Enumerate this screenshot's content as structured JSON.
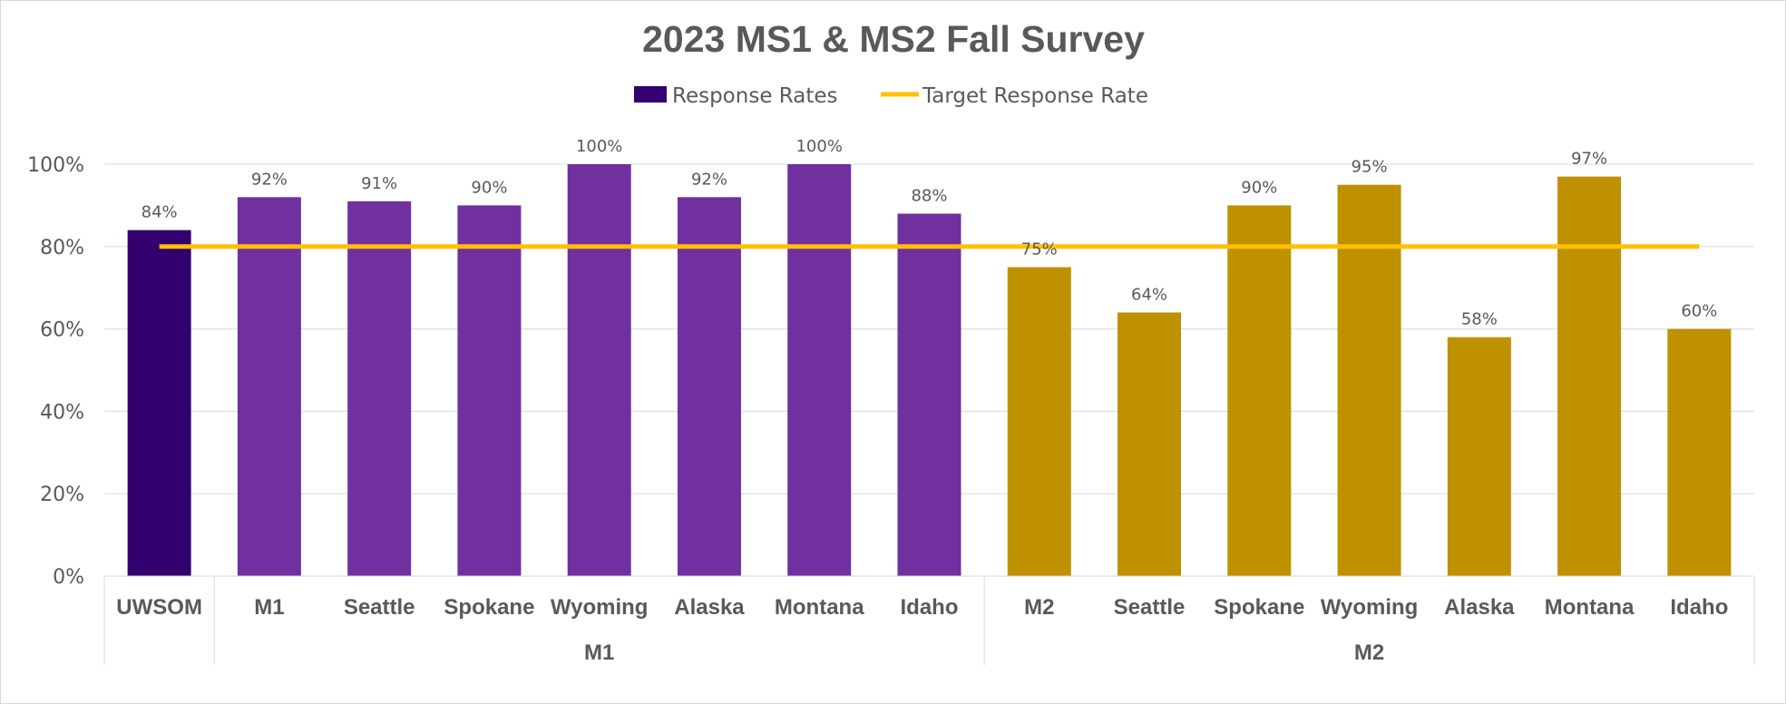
{
  "chart_data": {
    "type": "bar",
    "title": "2023 MS1 & MS2 Fall Survey",
    "xlabel": "",
    "ylabel": "",
    "ylim": [
      0,
      100
    ],
    "yticks": [
      "0%",
      "20%",
      "40%",
      "60%",
      "80%",
      "100%"
    ],
    "ytick_values": [
      0,
      20,
      40,
      60,
      80,
      100
    ],
    "grid": true,
    "legend": {
      "placement": "top",
      "entries": [
        {
          "label": "Response Rates",
          "marker": "bar",
          "color": "#33006F"
        },
        {
          "label": "Target Response Rate",
          "marker": "line",
          "color": "#FFC000"
        }
      ]
    },
    "categories": [
      "UWSOM",
      "M1",
      "Seattle",
      "Spokane",
      "Wyoming",
      "Alaska",
      "Montana",
      "Idaho",
      "M2",
      "Seattle",
      "Spokane",
      "Wyoming",
      "Alaska",
      "Montana",
      "Idaho"
    ],
    "groups": [
      {
        "label": "",
        "start": 0,
        "count": 1
      },
      {
        "label": "M1",
        "start": 1,
        "count": 7
      },
      {
        "label": "M2",
        "start": 8,
        "count": 7
      }
    ],
    "series": [
      {
        "name": "Response Rates",
        "values": [
          84,
          92,
          91,
          90,
          100,
          92,
          100,
          88,
          75,
          64,
          90,
          95,
          58,
          97,
          60
        ],
        "data_labels": [
          "84%",
          "92%",
          "91%",
          "90%",
          "100%",
          "92%",
          "100%",
          "88%",
          "75%",
          "64%",
          "90%",
          "95%",
          "58%",
          "97%",
          "60%"
        ],
        "colors": [
          "#33006F",
          "#7030A0",
          "#7030A0",
          "#7030A0",
          "#7030A0",
          "#7030A0",
          "#7030A0",
          "#7030A0",
          "#BF9000",
          "#BF9000",
          "#BF9000",
          "#BF9000",
          "#BF9000",
          "#BF9000",
          "#BF9000"
        ]
      },
      {
        "name": "Target Response Rate",
        "type": "line",
        "values": [
          80,
          80,
          80,
          80,
          80,
          80,
          80,
          80,
          80,
          80,
          80,
          80,
          80,
          80,
          80
        ],
        "color": "#FFC000"
      }
    ]
  }
}
